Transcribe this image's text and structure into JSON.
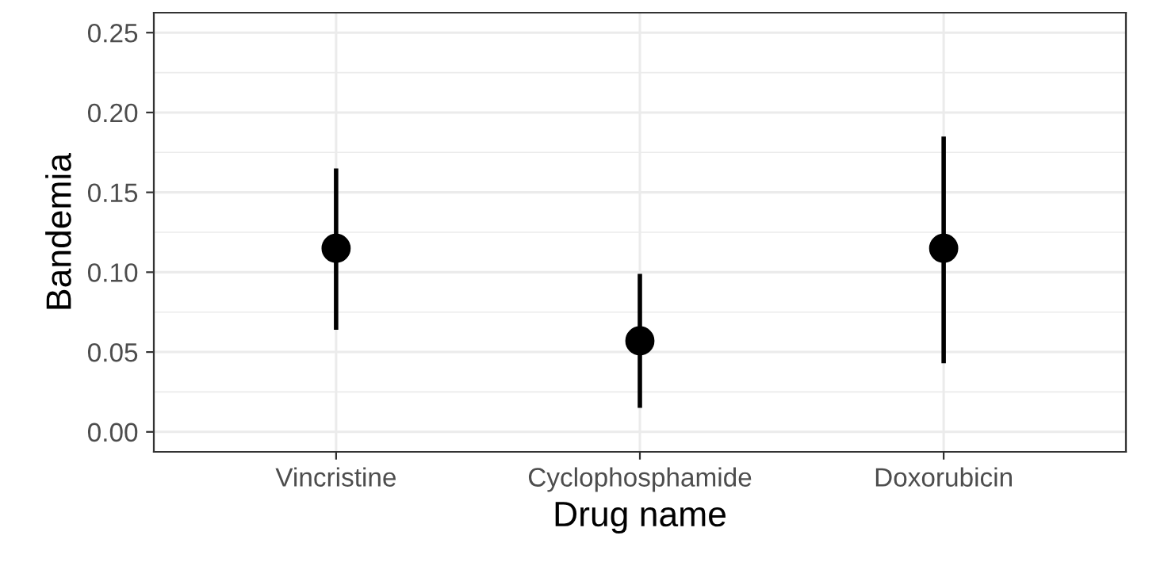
{
  "chart_data": {
    "type": "scatter",
    "xlabel": "Drug name",
    "ylabel": "Bandemia",
    "categories": [
      "Vincristine",
      "Cyclophosphamide",
      "Doxorubicin"
    ],
    "values": [
      0.115,
      0.057,
      0.115
    ],
    "errors": [
      [
        0.064,
        0.165
      ],
      [
        0.015,
        0.099
      ],
      [
        0.043,
        0.185
      ]
    ],
    "color": "#000000",
    "marker": "circle",
    "ylim": [
      -0.0125,
      0.2625
    ],
    "yticks": [
      {
        "value": 0,
        "label": "0.00"
      },
      {
        "value": 0.05,
        "label": "0.05"
      },
      {
        "value": 0.1,
        "label": "0.10"
      },
      {
        "value": 0.15,
        "label": "0.15"
      },
      {
        "value": 0.2,
        "label": "0.20"
      },
      {
        "value": 0.25,
        "label": "0.25"
      }
    ],
    "grid": true
  }
}
